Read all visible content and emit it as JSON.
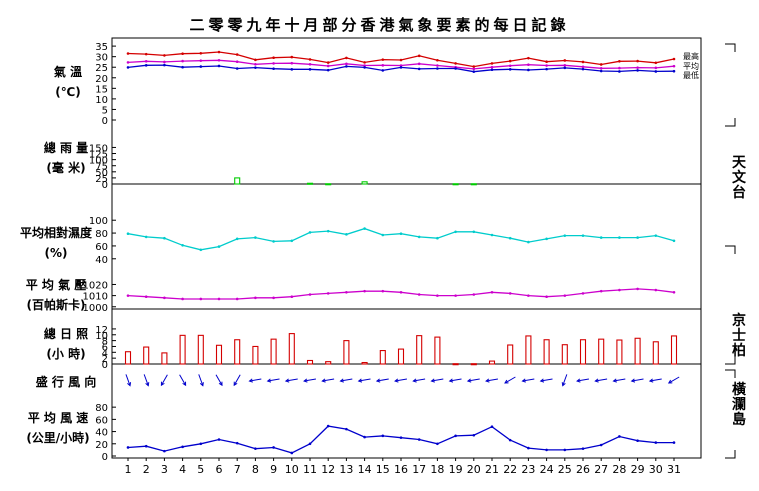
{
  "title": "二零零九年十月部分香港氣象要素的每日記錄",
  "panel_labels": {
    "temperature": [
      "氣 溫",
      "(℃)"
    ],
    "rainfall": [
      "總 雨 量",
      "(毫 米)"
    ],
    "humidity": [
      "平均相對濕度",
      "(%)"
    ],
    "pressure": [
      "平 均 氣 壓",
      "(百帕斯卡)"
    ],
    "sunshine": [
      "總 日 照",
      "(小 時)"
    ],
    "wind_direction": [
      "盛 行 風 向"
    ],
    "wind_speed": [
      "平 均 風 速",
      "(公里/小時)"
    ]
  },
  "station_labels": [
    "天文台",
    "京士柏",
    "橫瀾島"
  ],
  "legend_temperature": [
    "最高",
    "平均",
    "最低"
  ],
  "chart_data": [
    {
      "type": "line",
      "name": "temperature",
      "x": [
        1,
        2,
        3,
        4,
        5,
        6,
        7,
        8,
        9,
        10,
        11,
        12,
        13,
        14,
        15,
        16,
        17,
        18,
        19,
        20,
        21,
        22,
        23,
        24,
        25,
        26,
        27,
        28,
        29,
        30,
        31
      ],
      "yticks": [
        0,
        5,
        10,
        15,
        20,
        25,
        30,
        35
      ],
      "ylim": [
        0,
        36
      ],
      "series": [
        {
          "name": "最高",
          "color": "#d40000",
          "values": [
            31.5,
            31.2,
            30.6,
            31.4,
            31.6,
            32.2,
            31.0,
            28.5,
            29.5,
            29.8,
            28.7,
            27.2,
            29.4,
            27.3,
            28.6,
            28.4,
            30.4,
            28.3,
            26.8,
            25.3,
            26.8,
            27.9,
            29.3,
            27.6,
            28.2,
            27.5,
            26.3,
            27.8,
            27.9,
            27.1,
            28.9
          ]
        },
        {
          "name": "平均",
          "color": "#cc00cc",
          "values": [
            27.3,
            27.8,
            27.5,
            27.9,
            28.1,
            28.3,
            27.6,
            26.4,
            26.8,
            26.9,
            26.4,
            25.6,
            26.6,
            25.8,
            25.9,
            25.8,
            26.6,
            25.8,
            25.0,
            24.2,
            25.0,
            25.7,
            26.2,
            25.8,
            25.9,
            25.2,
            24.5,
            24.6,
            24.8,
            24.7,
            25.5
          ]
        },
        {
          "name": "最低",
          "color": "#0000cc",
          "values": [
            24.9,
            25.9,
            26.0,
            25.0,
            25.3,
            25.6,
            24.4,
            24.8,
            24.3,
            24.0,
            24.0,
            23.6,
            25.4,
            24.9,
            23.5,
            24.9,
            24.2,
            24.4,
            24.4,
            22.9,
            23.8,
            24.0,
            23.7,
            24.1,
            24.7,
            24.1,
            23.2,
            23.0,
            23.5,
            23.0,
            23.1
          ]
        }
      ]
    },
    {
      "type": "bar",
      "name": "rainfall",
      "x": [
        1,
        2,
        3,
        4,
        5,
        6,
        7,
        8,
        9,
        10,
        11,
        12,
        13,
        14,
        15,
        16,
        17,
        18,
        19,
        20,
        21,
        22,
        23,
        24,
        25,
        26,
        27,
        28,
        29,
        30,
        31
      ],
      "yticks": [
        0,
        25,
        50,
        75,
        100,
        125,
        150
      ],
      "ylim": [
        0,
        160
      ],
      "color": "#00cc00",
      "values": [
        0,
        0,
        0,
        0,
        0,
        0,
        25,
        0,
        0,
        0,
        3,
        1,
        0,
        9,
        0,
        0,
        0,
        0,
        1,
        1,
        0,
        0,
        0,
        0,
        0,
        0,
        0,
        0,
        0,
        0,
        0
      ]
    },
    {
      "type": "line",
      "name": "humidity",
      "x": [
        1,
        2,
        3,
        4,
        5,
        6,
        7,
        8,
        9,
        10,
        11,
        12,
        13,
        14,
        15,
        16,
        17,
        18,
        19,
        20,
        21,
        22,
        23,
        24,
        25,
        26,
        27,
        28,
        29,
        30,
        31
      ],
      "yticks": [
        40,
        60,
        80,
        100
      ],
      "ylim": [
        35,
        105
      ],
      "color": "#00cccc",
      "values": [
        79,
        74,
        72,
        61,
        54,
        59,
        71,
        73,
        67,
        68,
        81,
        83,
        78,
        87,
        77,
        79,
        74,
        72,
        82,
        82,
        77,
        72,
        66,
        71,
        76,
        76,
        73,
        73,
        73,
        76,
        68
      ]
    },
    {
      "type": "line",
      "name": "pressure",
      "x": [
        1,
        2,
        3,
        4,
        5,
        6,
        7,
        8,
        9,
        10,
        11,
        12,
        13,
        14,
        15,
        16,
        17,
        18,
        19,
        20,
        21,
        22,
        23,
        24,
        25,
        26,
        27,
        28,
        29,
        30,
        31
      ],
      "yticks": [
        1000,
        1010,
        1020
      ],
      "ylim": [
        998,
        1024
      ],
      "color": "#cc00cc",
      "values": [
        1010,
        1009,
        1008,
        1007,
        1007,
        1007,
        1007,
        1008,
        1008,
        1009,
        1011,
        1012,
        1013,
        1014,
        1014,
        1013,
        1011,
        1010,
        1010,
        1011,
        1013,
        1012,
        1010,
        1009,
        1010,
        1012,
        1014,
        1015,
        1016,
        1015,
        1013
      ]
    },
    {
      "type": "bar",
      "name": "sunshine",
      "x": [
        1,
        2,
        3,
        4,
        5,
        6,
        7,
        8,
        9,
        10,
        11,
        12,
        13,
        14,
        15,
        16,
        17,
        18,
        19,
        20,
        21,
        22,
        23,
        24,
        25,
        26,
        27,
        28,
        29,
        30,
        31
      ],
      "yticks": [
        0,
        2,
        4,
        6,
        8,
        10,
        12
      ],
      "ylim": [
        0,
        13
      ],
      "color": "#d40000",
      "values": [
        4.2,
        5.8,
        3.8,
        9.8,
        9.8,
        6.4,
        8.3,
        6.0,
        8.5,
        10.4,
        1.2,
        0.8,
        8.0,
        0.5,
        4.6,
        5.1,
        9.7,
        9.2,
        0.1,
        0.1,
        1.0,
        6.5,
        9.6,
        8.3,
        6.6,
        8.3,
        8.5,
        8.2,
        8.8,
        7.6,
        9.6
      ]
    },
    {
      "type": "table",
      "name": "wind_direction",
      "x": [
        1,
        2,
        3,
        4,
        5,
        6,
        7,
        8,
        9,
        10,
        11,
        12,
        13,
        14,
        15,
        16,
        17,
        18,
        19,
        20,
        21,
        22,
        23,
        24,
        25,
        26,
        27,
        28,
        29,
        30,
        31
      ],
      "direction_deg_from": [
        340,
        340,
        30,
        330,
        340,
        330,
        30,
        80,
        80,
        80,
        80,
        80,
        80,
        80,
        80,
        80,
        80,
        80,
        80,
        80,
        80,
        60,
        80,
        80,
        20,
        80,
        80,
        80,
        80,
        80,
        60
      ]
    },
    {
      "type": "line",
      "name": "wind_speed",
      "x": [
        1,
        2,
        3,
        4,
        5,
        6,
        7,
        8,
        9,
        10,
        11,
        12,
        13,
        14,
        15,
        16,
        17,
        18,
        19,
        20,
        21,
        22,
        23,
        24,
        25,
        26,
        27,
        28,
        29,
        30,
        31
      ],
      "yticks": [
        0,
        20,
        40,
        60,
        80
      ],
      "ylim": [
        0,
        95
      ],
      "color": "#0000cc",
      "values": [
        14,
        16,
        8,
        15,
        20,
        27,
        21,
        12,
        14,
        5,
        20,
        49,
        44,
        31,
        33,
        30,
        27,
        20,
        33,
        34,
        48,
        26,
        13,
        10,
        10,
        12,
        18,
        32,
        25,
        22,
        22
      ]
    }
  ]
}
